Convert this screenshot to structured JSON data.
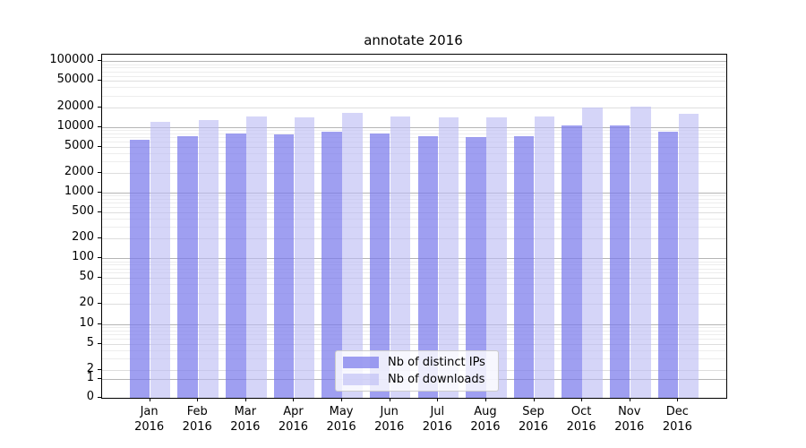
{
  "title": "annotate 2016",
  "chart_data": {
    "type": "bar",
    "title": "annotate 2016",
    "scale": "symlog",
    "grid": "both",
    "legend_position": "lower center",
    "categories": [
      "Jan",
      "Feb",
      "Mar",
      "Apr",
      "May",
      "Jun",
      "Jul",
      "Aug",
      "Sep",
      "Oct",
      "Nov",
      "Dec"
    ],
    "category_year": "2016",
    "y_ticks": [
      0,
      1,
      2,
      5,
      10,
      20,
      50,
      100,
      200,
      500,
      1000,
      2000,
      5000,
      10000,
      20000,
      50000,
      100000
    ],
    "ylim": [
      0,
      126000
    ],
    "series": [
      {
        "name": "Nb of distinct IPs",
        "fill": "rgba(122,122,235,0.72)",
        "color": "#a1a1f3",
        "values": [
          6300,
          7300,
          8000,
          7800,
          8500,
          8000,
          7200,
          7000,
          7300,
          10400,
          10500,
          8400
        ]
      },
      {
        "name": "Nb of downloads",
        "fill": "rgba(187,187,243,0.62)",
        "color": "#d8d8f7",
        "values": [
          11900,
          12900,
          14300,
          14000,
          16200,
          14600,
          14000,
          14000,
          14300,
          19500,
          20600,
          15700
        ]
      }
    ],
    "grid_colors": {
      "major": "#b5b5b5",
      "minor_labeled": "#dedede",
      "minor": "#ededed"
    }
  }
}
